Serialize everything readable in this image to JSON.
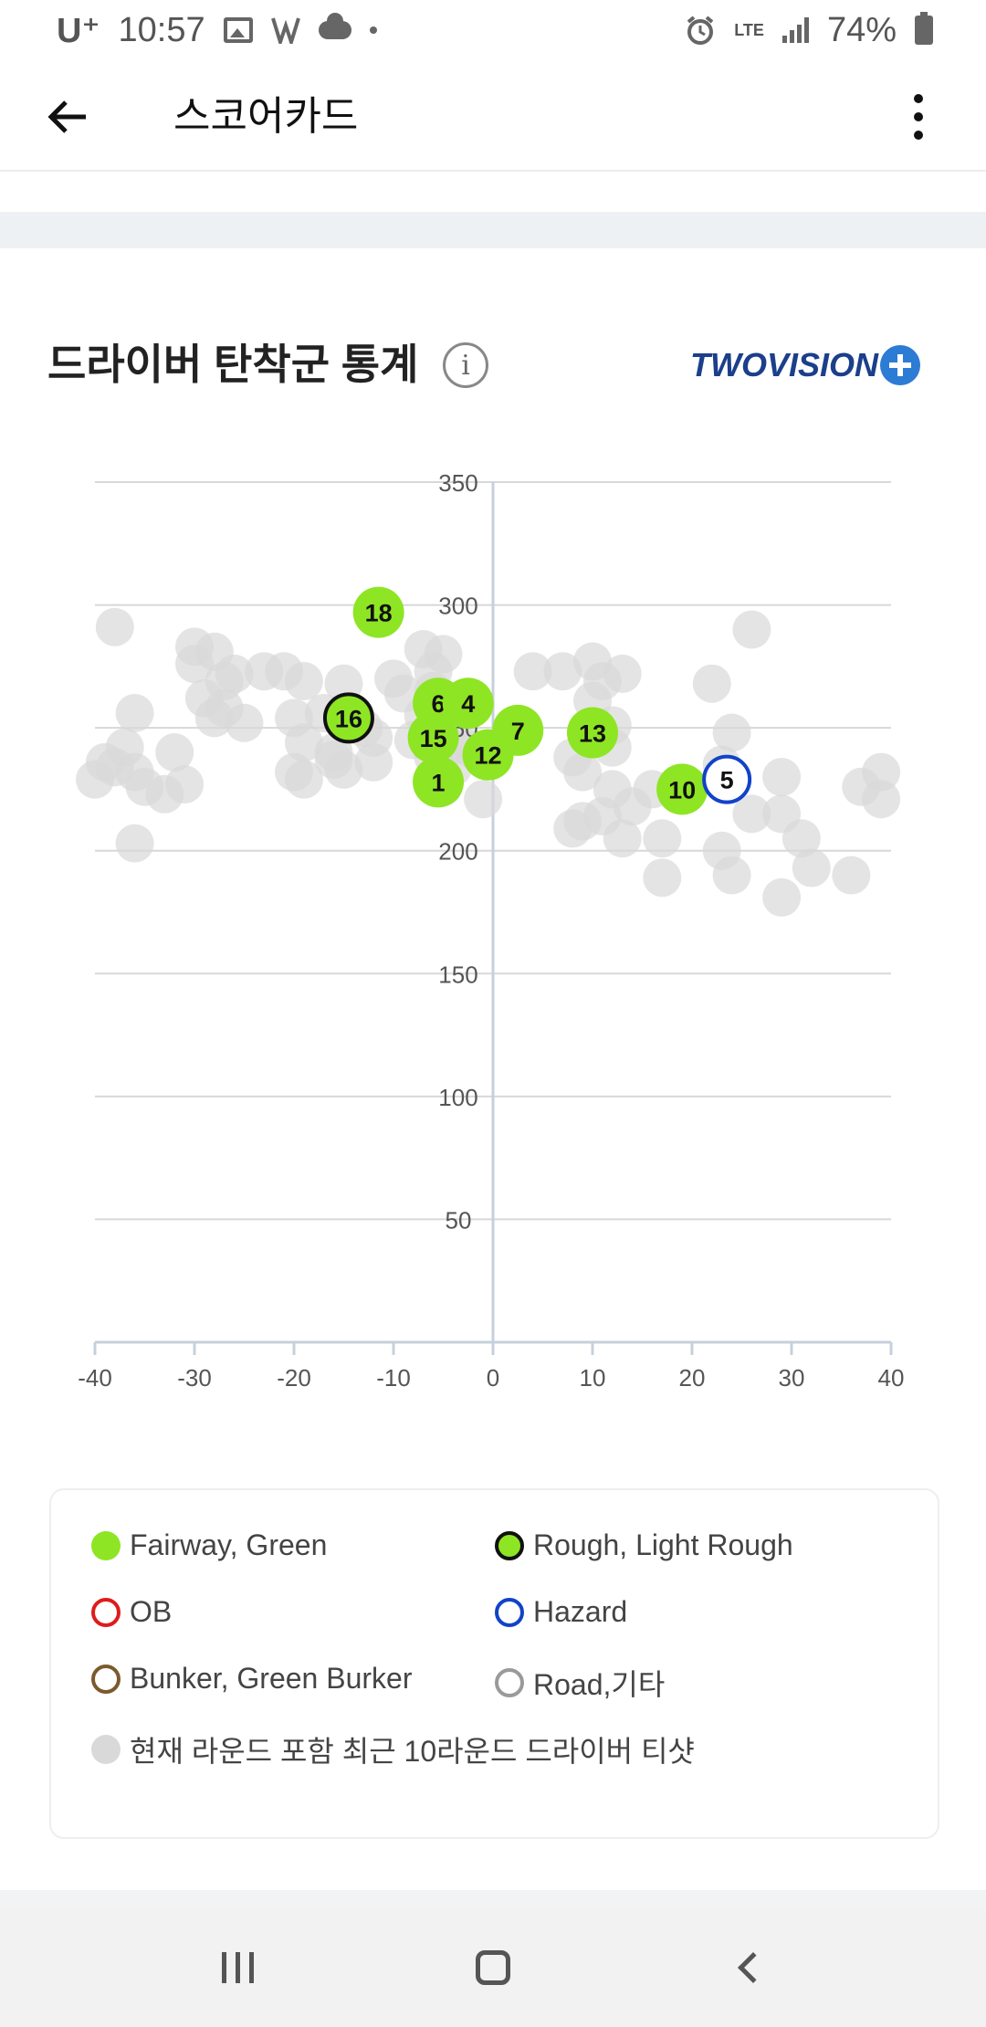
{
  "status_bar": {
    "carrier": "U⁺",
    "time": "10:57",
    "network": "LTE",
    "battery": "74%",
    "icons": [
      "photo-icon",
      "activity-icon",
      "cloud-icon",
      "dot-icon",
      "alarm-icon",
      "lte-icon",
      "signal-icon",
      "battery-icon"
    ]
  },
  "app_bar": {
    "title": "스코어카드",
    "back_icon": "arrow-left-icon",
    "more_icon": "more-vertical-icon"
  },
  "section": {
    "title": "드라이버 탄착군 통계",
    "info_icon": "i",
    "brand": "TWOVISION",
    "brand_suffix": "PLUS"
  },
  "chart_data": {
    "type": "scatter",
    "xlim": [
      -40,
      40
    ],
    "ylim": [
      0,
      350
    ],
    "x_ticks": [
      -40,
      -30,
      -20,
      -10,
      0,
      10,
      20,
      30,
      40
    ],
    "y_ticks": [
      50,
      100,
      150,
      200,
      250,
      300,
      350
    ],
    "grid": "horizontal",
    "colors": {
      "fairway": "#8ee524",
      "rough_border": "#111111",
      "hazard_border": "#1143c9",
      "recent": "#d9d9d9",
      "axis": "#c6d0dc",
      "grid": "#d8d8d8"
    },
    "current_round": [
      {
        "label": "18",
        "x": -11.5,
        "y": 297,
        "type": "fairway"
      },
      {
        "label": "16",
        "x": -14.5,
        "y": 254,
        "type": "rough"
      },
      {
        "label": "6",
        "x": -5.5,
        "y": 260,
        "type": "fairway"
      },
      {
        "label": "4",
        "x": -2.5,
        "y": 260,
        "type": "fairway"
      },
      {
        "label": "15",
        "x": -6,
        "y": 246,
        "type": "fairway"
      },
      {
        "label": "12",
        "x": -0.5,
        "y": 239,
        "type": "fairway"
      },
      {
        "label": "7",
        "x": 2.5,
        "y": 249,
        "type": "fairway"
      },
      {
        "label": "13",
        "x": 10,
        "y": 248,
        "type": "fairway"
      },
      {
        "label": "1",
        "x": -5.5,
        "y": 228,
        "type": "fairway"
      },
      {
        "label": "10",
        "x": 19,
        "y": 225,
        "type": "fairway"
      },
      {
        "label": "5",
        "x": 23.5,
        "y": 229,
        "type": "hazard"
      }
    ],
    "recent_rounds": [
      [
        -38,
        291
      ],
      [
        -36,
        256
      ],
      [
        -37,
        242
      ],
      [
        -38,
        234
      ],
      [
        -40,
        229
      ],
      [
        -39,
        236
      ],
      [
        -36,
        232
      ],
      [
        -35,
        226
      ],
      [
        -33,
        223
      ],
      [
        -32,
        240
      ],
      [
        -31,
        227
      ],
      [
        -36,
        203
      ],
      [
        -30,
        276
      ],
      [
        -30,
        283
      ],
      [
        -29,
        262
      ],
      [
        -28,
        281
      ],
      [
        -27,
        269
      ],
      [
        -26,
        272
      ],
      [
        -27,
        258
      ],
      [
        -28,
        254
      ],
      [
        -25,
        252
      ],
      [
        -23,
        273
      ],
      [
        -21,
        273
      ],
      [
        -19,
        269
      ],
      [
        -20,
        254
      ],
      [
        -19,
        244
      ],
      [
        -20,
        232
      ],
      [
        -19,
        229
      ],
      [
        -17,
        256
      ],
      [
        -16,
        237
      ],
      [
        -15,
        233
      ],
      [
        -16,
        240
      ],
      [
        -15,
        268
      ],
      [
        -13,
        250
      ],
      [
        -12,
        246
      ],
      [
        -12,
        236
      ],
      [
        -10,
        270
      ],
      [
        -9,
        264
      ],
      [
        -7,
        282
      ],
      [
        -6,
        273
      ],
      [
        -5,
        280
      ],
      [
        -7,
        255
      ],
      [
        -8,
        245
      ],
      [
        -6,
        265
      ],
      [
        -5,
        240
      ],
      [
        -4,
        252
      ],
      [
        -6,
        238
      ],
      [
        -5,
        226
      ],
      [
        -4,
        234
      ],
      [
        -1,
        221
      ],
      [
        -2,
        241
      ],
      [
        -3,
        243
      ],
      [
        4,
        273
      ],
      [
        7,
        273
      ],
      [
        10,
        277
      ],
      [
        11,
        269
      ],
      [
        13,
        272
      ],
      [
        10,
        261
      ],
      [
        12,
        251
      ],
      [
        12,
        242
      ],
      [
        8,
        238
      ],
      [
        9,
        232
      ],
      [
        12,
        225
      ],
      [
        14,
        218
      ],
      [
        11,
        214
      ],
      [
        9,
        212
      ],
      [
        8,
        209
      ],
      [
        13,
        205
      ],
      [
        17,
        205
      ],
      [
        17,
        189
      ],
      [
        16,
        225
      ],
      [
        22,
        268
      ],
      [
        24,
        248
      ],
      [
        23,
        235
      ],
      [
        26,
        290
      ],
      [
        26,
        215
      ],
      [
        29,
        230
      ],
      [
        29,
        215
      ],
      [
        31,
        205
      ],
      [
        32,
        193
      ],
      [
        29,
        181
      ],
      [
        23,
        200
      ],
      [
        24,
        190
      ],
      [
        37,
        226
      ],
      [
        39,
        232
      ],
      [
        39,
        221
      ],
      [
        36,
        190
      ]
    ]
  },
  "legend": [
    {
      "label": "Fairway, Green",
      "marker": "fairway"
    },
    {
      "label": "Rough, Light Rough",
      "marker": "rough"
    },
    {
      "label": "OB",
      "marker": "ob"
    },
    {
      "label": "Hazard",
      "marker": "hazard"
    },
    {
      "label": "Bunker, Green Burker",
      "marker": "bunker"
    },
    {
      "label": "Road,기타",
      "marker": "road"
    },
    {
      "label": "현재 라운드 포함 최근 10라운드 드라이버 티샷",
      "marker": "recent"
    }
  ],
  "nav_bar": {
    "icons": [
      "recent-apps-icon",
      "home-icon",
      "back-icon"
    ]
  }
}
